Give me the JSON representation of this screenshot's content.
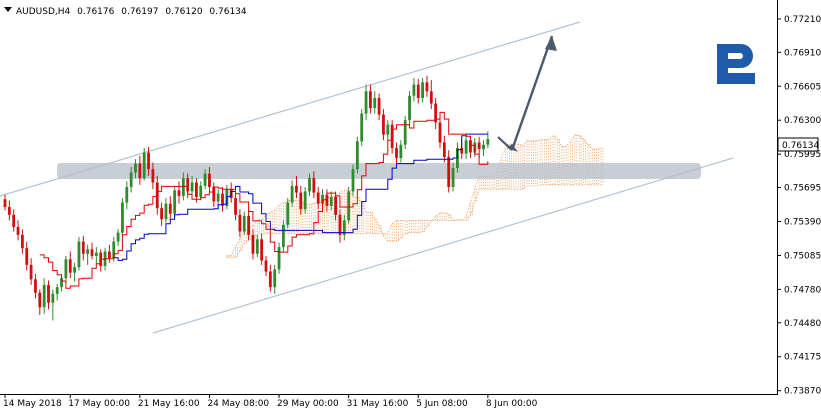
{
  "header": {
    "symbol": "AUDUSD,H4",
    "open": "0.76176",
    "high": "0.76197",
    "low": "0.76120",
    "close": "0.76134",
    "arrow_icon": "triangle-down-icon"
  },
  "logo": {
    "icon": "broker-logo-icon",
    "color": "#1e5ba8"
  },
  "current_price_label": "0.76134",
  "colors": {
    "bull": "#2e8b2e",
    "bear": "#d01010",
    "tenkan": "#e00000",
    "kijun": "#0000cc",
    "cloud": "#f0a060",
    "channel": "#b0c4d8",
    "zone": "#b4bec8",
    "arrow": "#4a5a6e"
  },
  "chart_data": {
    "type": "candlestick",
    "symbol": "AUDUSD",
    "timeframe": "H4",
    "ylim": [
      0.7384,
      0.7738
    ],
    "ytick_values": [
      0.7721,
      0.7691,
      0.76605,
      0.763,
      0.75995,
      0.75695,
      0.7539,
      0.75085,
      0.7478,
      0.7448,
      0.74175,
      0.7387
    ],
    "ytick_labels": [
      "0.77210",
      "0.76910",
      "0.76605",
      "0.76300",
      "0.75995",
      "0.75695",
      "0.75390",
      "0.75085",
      "0.74780",
      "0.74480",
      "0.74175",
      "0.73870"
    ],
    "xticks": [
      {
        "i": 0,
        "label": "14 May 2018"
      },
      {
        "i": 15,
        "label": "17 May 00:00"
      },
      {
        "i": 31,
        "label": "21 May 16:00"
      },
      {
        "i": 47,
        "label": "24 May 08:00"
      },
      {
        "i": 63,
        "label": "29 May 00:00"
      },
      {
        "i": 79,
        "label": "31 May 16:00"
      },
      {
        "i": 95,
        "label": "5 Jun 08:00"
      },
      {
        "i": 111,
        "label": "8 Jun 00:00"
      }
    ],
    "candles": [
      [
        0.7559,
        0.7563,
        0.7549,
        0.7552
      ],
      [
        0.7552,
        0.7558,
        0.754,
        0.7545
      ],
      [
        0.7545,
        0.755,
        0.753,
        0.7534
      ],
      [
        0.7534,
        0.754,
        0.7522,
        0.7527
      ],
      [
        0.7527,
        0.7532,
        0.751,
        0.7515
      ],
      [
        0.7515,
        0.7521,
        0.7495,
        0.75
      ],
      [
        0.75,
        0.7506,
        0.7482,
        0.7487
      ],
      [
        0.7487,
        0.7492,
        0.747,
        0.7475
      ],
      [
        0.7475,
        0.7478,
        0.7455,
        0.7462
      ],
      [
        0.7462,
        0.7488,
        0.7456,
        0.7482
      ],
      [
        0.7482,
        0.7486,
        0.746,
        0.7466
      ],
      [
        0.7466,
        0.7478,
        0.745,
        0.7474
      ],
      [
        0.7474,
        0.7483,
        0.7468,
        0.748
      ],
      [
        0.748,
        0.7492,
        0.7476,
        0.7488
      ],
      [
        0.7488,
        0.7508,
        0.7484,
        0.7505
      ],
      [
        0.7505,
        0.7512,
        0.7488,
        0.7493
      ],
      [
        0.7493,
        0.7502,
        0.7485,
        0.7498
      ],
      [
        0.7498,
        0.7525,
        0.7495,
        0.7521
      ],
      [
        0.7521,
        0.7526,
        0.7504,
        0.751
      ],
      [
        0.751,
        0.7518,
        0.75,
        0.7514
      ],
      [
        0.7514,
        0.752,
        0.7505,
        0.7508
      ],
      [
        0.7508,
        0.7516,
        0.75,
        0.7511
      ],
      [
        0.7511,
        0.7514,
        0.7494,
        0.7499
      ],
      [
        0.7499,
        0.7515,
        0.7495,
        0.7512
      ],
      [
        0.7512,
        0.7518,
        0.7502,
        0.7506
      ],
      [
        0.7506,
        0.7525,
        0.7503,
        0.7521
      ],
      [
        0.7521,
        0.7532,
        0.7517,
        0.7529
      ],
      [
        0.7529,
        0.756,
        0.7526,
        0.7556
      ],
      [
        0.7556,
        0.7575,
        0.755,
        0.757
      ],
      [
        0.757,
        0.7588,
        0.7565,
        0.7583
      ],
      [
        0.7583,
        0.7595,
        0.7578,
        0.7591
      ],
      [
        0.7591,
        0.7598,
        0.7572,
        0.7578
      ],
      [
        0.7578,
        0.7605,
        0.7576,
        0.7601
      ],
      [
        0.7601,
        0.7606,
        0.758,
        0.7586
      ],
      [
        0.7586,
        0.7592,
        0.7568,
        0.7574
      ],
      [
        0.7574,
        0.758,
        0.7545,
        0.7551
      ],
      [
        0.7551,
        0.7556,
        0.7535,
        0.7541
      ],
      [
        0.7541,
        0.756,
        0.7538,
        0.7555
      ],
      [
        0.7555,
        0.7562,
        0.754,
        0.7546
      ],
      [
        0.7546,
        0.7571,
        0.7543,
        0.7567
      ],
      [
        0.7567,
        0.7575,
        0.7555,
        0.7562
      ],
      [
        0.7562,
        0.7583,
        0.7558,
        0.7578
      ],
      [
        0.7578,
        0.7582,
        0.756,
        0.7566
      ],
      [
        0.7566,
        0.758,
        0.7562,
        0.7574
      ],
      [
        0.7574,
        0.7578,
        0.7556,
        0.7561
      ],
      [
        0.7561,
        0.7575,
        0.7558,
        0.7571
      ],
      [
        0.7571,
        0.7586,
        0.7568,
        0.7582
      ],
      [
        0.7582,
        0.7588,
        0.7566,
        0.757
      ],
      [
        0.757,
        0.7574,
        0.7552,
        0.7557
      ],
      [
        0.7557,
        0.7568,
        0.755,
        0.7564
      ],
      [
        0.7564,
        0.757,
        0.7548,
        0.7553
      ],
      [
        0.7553,
        0.7572,
        0.755,
        0.7568
      ],
      [
        0.7568,
        0.7574,
        0.7556,
        0.756
      ],
      [
        0.756,
        0.7565,
        0.754,
        0.7545
      ],
      [
        0.7545,
        0.755,
        0.7525,
        0.753
      ],
      [
        0.753,
        0.7548,
        0.7527,
        0.7544
      ],
      [
        0.7544,
        0.7549,
        0.7522,
        0.7527
      ],
      [
        0.7527,
        0.7532,
        0.7505,
        0.751
      ],
      [
        0.751,
        0.7527,
        0.7507,
        0.7523
      ],
      [
        0.7523,
        0.7528,
        0.75,
        0.7504
      ],
      [
        0.7504,
        0.7508,
        0.749,
        0.7494
      ],
      [
        0.7494,
        0.75,
        0.7476,
        0.748
      ],
      [
        0.748,
        0.75,
        0.7474,
        0.7496
      ],
      [
        0.7496,
        0.752,
        0.7492,
        0.7516
      ],
      [
        0.7516,
        0.754,
        0.7512,
        0.7536
      ],
      [
        0.7536,
        0.756,
        0.7533,
        0.7556
      ],
      [
        0.7556,
        0.7576,
        0.7552,
        0.7571
      ],
      [
        0.7571,
        0.758,
        0.756,
        0.7565
      ],
      [
        0.7565,
        0.7571,
        0.7545,
        0.755
      ],
      [
        0.755,
        0.757,
        0.7546,
        0.7566
      ],
      [
        0.7566,
        0.7582,
        0.7562,
        0.7578
      ],
      [
        0.7578,
        0.7584,
        0.756,
        0.7565
      ],
      [
        0.7565,
        0.757,
        0.755,
        0.7555
      ],
      [
        0.7555,
        0.7568,
        0.755,
        0.7563
      ],
      [
        0.7563,
        0.7568,
        0.7548,
        0.7553
      ],
      [
        0.7553,
        0.7566,
        0.7549,
        0.7561
      ],
      [
        0.7561,
        0.7566,
        0.754,
        0.7545
      ],
      [
        0.7545,
        0.755,
        0.752,
        0.7527
      ],
      [
        0.7527,
        0.7545,
        0.7522,
        0.754
      ],
      [
        0.754,
        0.757,
        0.7537,
        0.7566
      ],
      [
        0.7566,
        0.759,
        0.7562,
        0.7586
      ],
      [
        0.7586,
        0.7615,
        0.7582,
        0.7611
      ],
      [
        0.7611,
        0.764,
        0.7607,
        0.7636
      ],
      [
        0.7636,
        0.7662,
        0.763,
        0.7656
      ],
      [
        0.7656,
        0.7662,
        0.7636,
        0.7641
      ],
      [
        0.7641,
        0.7656,
        0.7636,
        0.765
      ],
      [
        0.765,
        0.7654,
        0.763,
        0.7635
      ],
      [
        0.7635,
        0.764,
        0.7612,
        0.7617
      ],
      [
        0.7617,
        0.763,
        0.7612,
        0.7626
      ],
      [
        0.7626,
        0.763,
        0.76,
        0.7605
      ],
      [
        0.7605,
        0.761,
        0.759,
        0.7596
      ],
      [
        0.7596,
        0.7612,
        0.7592,
        0.7608
      ],
      [
        0.7608,
        0.7634,
        0.7604,
        0.763
      ],
      [
        0.763,
        0.7656,
        0.7626,
        0.7652
      ],
      [
        0.7652,
        0.7668,
        0.7647,
        0.7662
      ],
      [
        0.7662,
        0.7667,
        0.7645,
        0.765
      ],
      [
        0.765,
        0.7668,
        0.7646,
        0.7664
      ],
      [
        0.7664,
        0.767,
        0.7651,
        0.7656
      ],
      [
        0.7656,
        0.7666,
        0.764,
        0.7645
      ],
      [
        0.7645,
        0.765,
        0.7622,
        0.7628
      ],
      [
        0.7628,
        0.7634,
        0.7605,
        0.761
      ],
      [
        0.761,
        0.7616,
        0.7592,
        0.7597
      ],
      [
        0.7597,
        0.7603,
        0.7565,
        0.757
      ],
      [
        0.757,
        0.7592,
        0.7566,
        0.7587
      ],
      [
        0.7587,
        0.761,
        0.7583,
        0.7605
      ],
      [
        0.7605,
        0.7612,
        0.7595,
        0.76
      ],
      [
        0.76,
        0.7616,
        0.7595,
        0.7612
      ],
      [
        0.7612,
        0.7616,
        0.7596,
        0.7601
      ],
      [
        0.7601,
        0.7614,
        0.7597,
        0.761
      ],
      [
        0.761,
        0.7615,
        0.7596,
        0.7604
      ],
      [
        0.7604,
        0.7612,
        0.7598,
        0.7608
      ],
      [
        0.7608,
        0.762,
        0.7605,
        0.7613
      ]
    ],
    "indicators": [
      "Ichimoku Kinko Hyo"
    ],
    "drawings": [
      "ascending channel",
      "horizontal support zone near 0.7596",
      "forecast arrow pointing up"
    ]
  }
}
